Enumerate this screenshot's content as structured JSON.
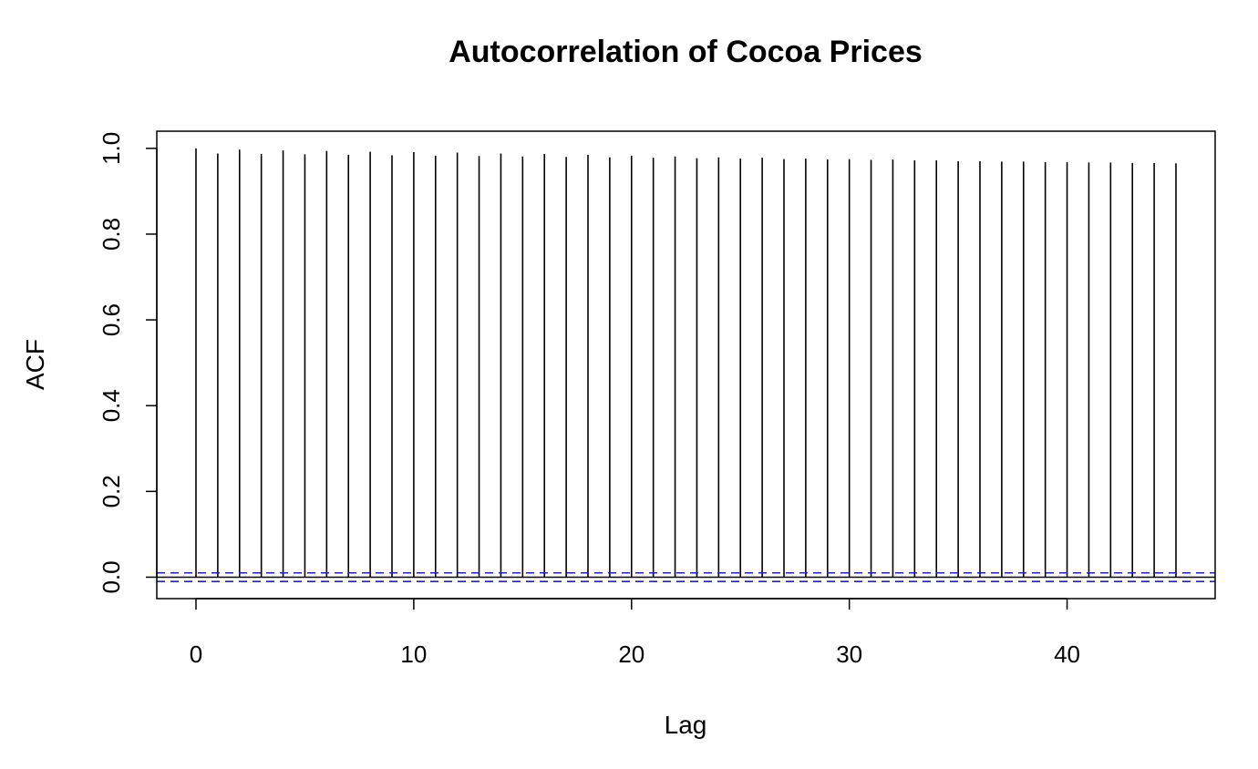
{
  "chart_data": {
    "type": "bar",
    "subtype": "acf-stem",
    "title": "Autocorrelation of Cocoa Prices",
    "xlabel": "Lag",
    "ylabel": "ACF",
    "xlim": [
      -1.8,
      46.8
    ],
    "ylim": [
      -0.05,
      1.04
    ],
    "x_ticks": [
      0,
      10,
      20,
      30,
      40
    ],
    "x_tick_labels": [
      "0",
      "10",
      "20",
      "30",
      "40"
    ],
    "y_ticks": [
      0.0,
      0.2,
      0.4,
      0.6,
      0.8,
      1.0
    ],
    "y_tick_labels": [
      "0.0",
      "0.2",
      "0.4",
      "0.6",
      "0.8",
      "1.0"
    ],
    "grid": false,
    "lags": [
      0,
      1,
      2,
      3,
      4,
      5,
      6,
      7,
      8,
      9,
      10,
      11,
      12,
      13,
      14,
      15,
      16,
      17,
      18,
      19,
      20,
      21,
      22,
      23,
      24,
      25,
      26,
      27,
      28,
      29,
      30,
      31,
      32,
      33,
      34,
      35,
      36,
      37,
      38,
      39,
      40,
      41,
      42,
      43,
      44,
      45
    ],
    "values": [
      1.0,
      0.988,
      0.997,
      0.987,
      0.995,
      0.986,
      0.994,
      0.985,
      0.992,
      0.984,
      0.991,
      0.983,
      0.99,
      0.982,
      0.988,
      0.981,
      0.987,
      0.98,
      0.985,
      0.979,
      0.983,
      0.978,
      0.981,
      0.977,
      0.979,
      0.976,
      0.978,
      0.975,
      0.976,
      0.974,
      0.975,
      0.973,
      0.974,
      0.972,
      0.972,
      0.97,
      0.97,
      0.969,
      0.969,
      0.968,
      0.968,
      0.967,
      0.967,
      0.966,
      0.966,
      0.965
    ],
    "confidence_bound": 0.01,
    "colors": {
      "stem": "#000000",
      "confidence": "#2222cc",
      "zero_line": "#000000"
    }
  }
}
